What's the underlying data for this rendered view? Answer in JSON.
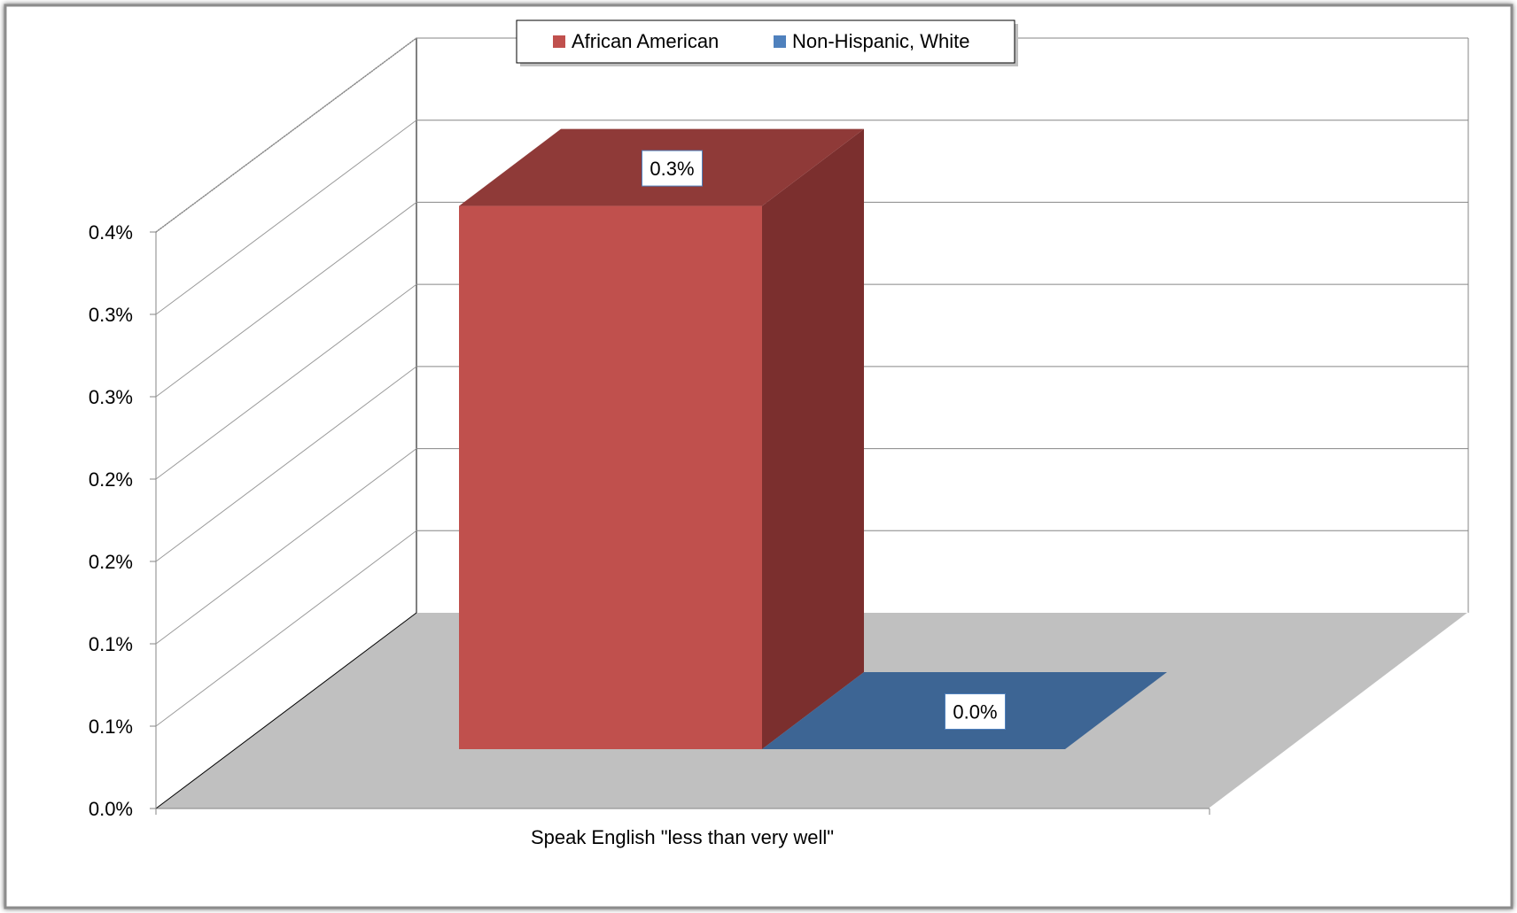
{
  "chart_data": {
    "type": "bar",
    "style": "3d-clustered-column",
    "categories": [
      "Speak English \"less than very well\""
    ],
    "series": [
      {
        "name": "African American",
        "values": [
          0.0034
        ],
        "label": "0.3%",
        "color": "#c0504d"
      },
      {
        "name": "Non-Hispanic, White",
        "values": [
          0.0
        ],
        "label": "0.0%",
        "color": "#4f81bd"
      }
    ],
    "ylim": [
      0,
      0.0035
    ],
    "yticks": [
      0,
      0.0005,
      0.001,
      0.0015,
      0.002,
      0.0025,
      0.003,
      0.0035
    ],
    "ytick_labels": [
      "0.0%",
      "0.1%",
      "0.1%",
      "0.2%",
      "0.2%",
      "0.3%",
      "0.3%",
      "0.4%"
    ],
    "grid": true,
    "legend_position": "top",
    "floor_color": "#c0c0c0",
    "border_color": "#7f7f7f",
    "background": "#ffffff"
  }
}
